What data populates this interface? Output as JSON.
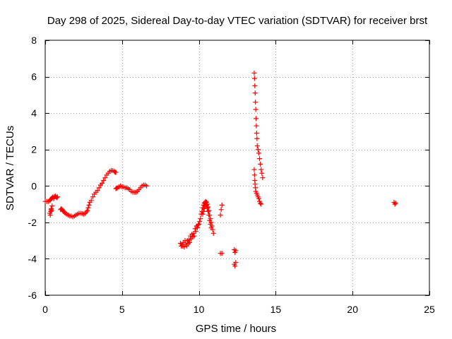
{
  "chart_data": {
    "type": "scatter",
    "title": "Day 298 of 2025, Sidereal Day-to-day VTEC variation (SDTVAR) for receiver brst",
    "xlabel": "GPS time / hours",
    "ylabel": "SDTVAR / TECUs",
    "xlim": [
      0,
      25
    ],
    "ylim": [
      -6,
      8
    ],
    "xticks": [
      0,
      5,
      10,
      15,
      20,
      25
    ],
    "yticks": [
      -6,
      -4,
      -2,
      0,
      2,
      4,
      6,
      8
    ],
    "grid": true,
    "marker": "+",
    "color": "#ff0000",
    "series": [
      {
        "name": "SDTVAR",
        "points": [
          [
            0.0,
            -0.85
          ],
          [
            0.1,
            -0.85
          ],
          [
            0.2,
            -0.85
          ],
          [
            0.3,
            -0.8
          ],
          [
            0.3,
            -1.5
          ],
          [
            0.33,
            -1.6
          ],
          [
            0.36,
            -1.4
          ],
          [
            0.38,
            -1.3
          ],
          [
            0.4,
            -1.25
          ],
          [
            0.42,
            -1.35
          ],
          [
            0.45,
            -1.1
          ],
          [
            0.35,
            -0.75
          ],
          [
            0.4,
            -0.7
          ],
          [
            0.45,
            -0.65
          ],
          [
            0.5,
            -0.6
          ],
          [
            0.55,
            -0.7
          ],
          [
            0.6,
            -0.6
          ],
          [
            0.65,
            -0.55
          ],
          [
            0.7,
            -0.6
          ],
          [
            0.75,
            -0.65
          ],
          [
            0.8,
            -0.6
          ],
          [
            1.0,
            -1.3
          ],
          [
            1.05,
            -1.25
          ],
          [
            1.1,
            -1.3
          ],
          [
            1.15,
            -1.35
          ],
          [
            1.2,
            -1.4
          ],
          [
            1.25,
            -1.45
          ],
          [
            1.3,
            -1.5
          ],
          [
            1.4,
            -1.55
          ],
          [
            1.5,
            -1.6
          ],
          [
            1.6,
            -1.65
          ],
          [
            1.7,
            -1.65
          ],
          [
            1.8,
            -1.7
          ],
          [
            1.9,
            -1.65
          ],
          [
            2.0,
            -1.6
          ],
          [
            2.1,
            -1.55
          ],
          [
            2.2,
            -1.5
          ],
          [
            2.3,
            -1.5
          ],
          [
            2.4,
            -1.52
          ],
          [
            2.5,
            -1.55
          ],
          [
            2.6,
            -1.5
          ],
          [
            2.7,
            -1.42
          ],
          [
            2.75,
            -1.35
          ],
          [
            2.8,
            -1.2
          ],
          [
            2.85,
            -1.05
          ],
          [
            2.9,
            -0.9
          ],
          [
            3.0,
            -0.8
          ],
          [
            3.1,
            -0.6
          ],
          [
            3.2,
            -0.45
          ],
          [
            3.3,
            -0.35
          ],
          [
            3.4,
            -0.25
          ],
          [
            3.5,
            -0.1
          ],
          [
            3.6,
            0.05
          ],
          [
            3.7,
            0.15
          ],
          [
            3.8,
            0.3
          ],
          [
            3.9,
            0.45
          ],
          [
            4.0,
            0.6
          ],
          [
            4.1,
            0.7
          ],
          [
            4.2,
            0.8
          ],
          [
            4.3,
            0.85
          ],
          [
            4.4,
            0.85
          ],
          [
            4.5,
            0.8
          ],
          [
            4.55,
            0.75
          ],
          [
            4.6,
            0.75
          ],
          [
            4.6,
            -0.15
          ],
          [
            4.65,
            -0.12
          ],
          [
            4.7,
            -0.1
          ],
          [
            4.8,
            -0.05
          ],
          [
            4.9,
            0.0
          ],
          [
            5.0,
            -0.05
          ],
          [
            5.1,
            -0.05
          ],
          [
            5.2,
            -0.1
          ],
          [
            5.3,
            -0.1
          ],
          [
            5.4,
            -0.15
          ],
          [
            5.5,
            -0.2
          ],
          [
            5.6,
            -0.3
          ],
          [
            5.7,
            -0.35
          ],
          [
            5.8,
            -0.35
          ],
          [
            5.9,
            -0.35
          ],
          [
            6.0,
            -0.3
          ],
          [
            6.1,
            -0.2
          ],
          [
            6.2,
            -0.1
          ],
          [
            6.3,
            0.0
          ],
          [
            6.4,
            0.05
          ],
          [
            6.5,
            0.05
          ],
          [
            6.6,
            0.0
          ],
          [
            8.8,
            -3.15
          ],
          [
            8.85,
            -3.3
          ],
          [
            8.9,
            -3.2
          ],
          [
            8.95,
            -3.3
          ],
          [
            9.0,
            -3.1
          ],
          [
            9.05,
            -3.35
          ],
          [
            9.1,
            -3.0
          ],
          [
            9.15,
            -3.2
          ],
          [
            9.2,
            -3.3
          ],
          [
            9.25,
            -3.0
          ],
          [
            9.3,
            -3.15
          ],
          [
            9.35,
            -2.95
          ],
          [
            9.4,
            -3.1
          ],
          [
            9.45,
            -2.75
          ],
          [
            9.5,
            -2.9
          ],
          [
            9.55,
            -2.65
          ],
          [
            9.6,
            -2.8
          ],
          [
            9.65,
            -2.6
          ],
          [
            9.7,
            -2.75
          ],
          [
            9.75,
            -2.35
          ],
          [
            9.8,
            -2.5
          ],
          [
            9.85,
            -2.2
          ],
          [
            9.9,
            -2.3
          ],
          [
            9.95,
            -2.15
          ],
          [
            10.0,
            -2.1
          ],
          [
            10.05,
            -1.95
          ],
          [
            10.1,
            -1.8
          ],
          [
            10.15,
            -1.55
          ],
          [
            10.2,
            -1.4
          ],
          [
            10.25,
            -1.2
          ],
          [
            10.3,
            -1.05
          ],
          [
            10.35,
            -0.95
          ],
          [
            10.4,
            -0.9
          ],
          [
            10.45,
            -0.85
          ],
          [
            10.5,
            -0.9
          ],
          [
            10.55,
            -1.0
          ],
          [
            10.6,
            -1.15
          ],
          [
            10.65,
            -1.35
          ],
          [
            10.7,
            -1.6
          ],
          [
            10.75,
            -1.8
          ],
          [
            10.8,
            -2.0
          ],
          [
            10.85,
            -2.2
          ],
          [
            10.9,
            -2.4
          ],
          [
            10.95,
            -2.6
          ],
          [
            10.25,
            -1.55
          ],
          [
            10.3,
            -1.4
          ],
          [
            10.35,
            -1.25
          ],
          [
            10.4,
            -1.1
          ],
          [
            10.45,
            -1.0
          ],
          [
            10.5,
            -1.05
          ],
          [
            10.55,
            -1.2
          ],
          [
            10.6,
            -1.4
          ],
          [
            10.65,
            -1.6
          ],
          [
            10.7,
            -1.9
          ],
          [
            10.75,
            -2.1
          ],
          [
            10.8,
            -2.3
          ],
          [
            11.4,
            -1.6
          ],
          [
            11.45,
            -1.3
          ],
          [
            11.5,
            -1.05
          ],
          [
            11.4,
            -3.7
          ],
          [
            11.5,
            -3.7
          ],
          [
            12.3,
            -3.5
          ],
          [
            12.35,
            -3.65
          ],
          [
            12.4,
            -3.55
          ],
          [
            12.3,
            -4.3
          ],
          [
            12.35,
            -4.4
          ],
          [
            12.4,
            -4.2
          ],
          [
            13.6,
            6.2
          ],
          [
            13.62,
            5.9
          ],
          [
            13.64,
            5.5
          ],
          [
            13.66,
            5.1
          ],
          [
            13.68,
            4.6
          ],
          [
            13.7,
            4.2
          ],
          [
            13.72,
            3.7
          ],
          [
            13.74,
            3.3
          ],
          [
            13.76,
            2.9
          ],
          [
            13.78,
            2.6
          ],
          [
            13.8,
            2.2
          ],
          [
            13.85,
            2.0
          ],
          [
            13.9,
            1.8
          ],
          [
            13.95,
            1.5
          ],
          [
            14.0,
            1.2
          ],
          [
            14.05,
            0.9
          ],
          [
            14.1,
            0.7
          ],
          [
            14.15,
            0.45
          ],
          [
            13.6,
            0.9
          ],
          [
            13.62,
            0.6
          ],
          [
            13.64,
            0.3
          ],
          [
            13.66,
            0.1
          ],
          [
            13.68,
            -0.1
          ],
          [
            13.7,
            -0.3
          ],
          [
            13.75,
            -0.4
          ],
          [
            13.8,
            -0.5
          ],
          [
            13.85,
            -0.6
          ],
          [
            13.9,
            -0.7
          ],
          [
            13.95,
            -0.85
          ],
          [
            14.0,
            -0.95
          ],
          [
            14.05,
            -1.0
          ],
          [
            22.7,
            -0.9
          ],
          [
            22.75,
            -1.0
          ],
          [
            22.8,
            -0.95
          ]
        ]
      }
    ]
  }
}
